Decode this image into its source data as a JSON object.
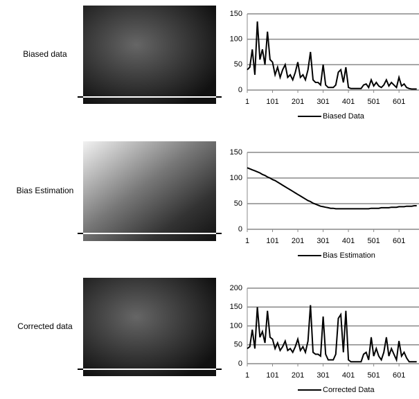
{
  "row_labels": [
    "Biased data",
    "Bias Estimation",
    "Corrected data"
  ],
  "chart_data": [
    {
      "type": "line",
      "x": [
        1,
        11,
        21,
        31,
        41,
        51,
        61,
        71,
        81,
        91,
        101,
        111,
        121,
        131,
        141,
        151,
        161,
        171,
        181,
        191,
        201,
        211,
        221,
        231,
        241,
        251,
        261,
        271,
        281,
        291,
        301,
        311,
        321,
        331,
        341,
        351,
        361,
        371,
        381,
        391,
        401,
        411,
        421,
        431,
        441,
        451,
        461,
        471,
        481,
        491,
        501,
        511,
        521,
        531,
        541,
        551,
        561,
        571,
        581,
        591,
        601,
        611,
        621,
        631,
        641,
        651,
        661,
        671
      ],
      "series": [
        {
          "name": "Biased Data",
          "color": "#000000",
          "values": [
            40,
            45,
            80,
            30,
            135,
            60,
            80,
            50,
            115,
            60,
            55,
            30,
            45,
            25,
            40,
            50,
            25,
            30,
            20,
            35,
            55,
            25,
            30,
            20,
            40,
            75,
            20,
            15,
            15,
            10,
            50,
            10,
            5,
            5,
            5,
            10,
            35,
            40,
            15,
            45,
            5,
            3,
            3,
            3,
            3,
            3,
            10,
            12,
            5,
            20,
            8,
            15,
            8,
            5,
            10,
            20,
            8,
            15,
            10,
            5,
            25,
            8,
            12,
            5,
            3,
            2,
            2,
            2
          ]
        }
      ],
      "xlim": [
        1,
        680
      ],
      "xticks": [
        1,
        101,
        201,
        301,
        401,
        501,
        601
      ],
      "ylim": [
        0,
        150
      ],
      "yticks": [
        0,
        50,
        100,
        150
      ],
      "grid": true
    },
    {
      "type": "line",
      "x": [
        1,
        11,
        21,
        31,
        41,
        51,
        61,
        71,
        81,
        91,
        101,
        111,
        121,
        131,
        141,
        151,
        161,
        171,
        181,
        191,
        201,
        211,
        221,
        231,
        241,
        251,
        261,
        271,
        281,
        291,
        301,
        311,
        321,
        331,
        341,
        351,
        361,
        371,
        381,
        391,
        401,
        411,
        421,
        431,
        441,
        451,
        461,
        471,
        481,
        491,
        501,
        511,
        521,
        531,
        541,
        551,
        561,
        571,
        581,
        591,
        601,
        611,
        621,
        631,
        641,
        651,
        661,
        671
      ],
      "series": [
        {
          "name": "Bias Estimation",
          "color": "#000000",
          "values": [
            120,
            118,
            116,
            114,
            112,
            110,
            107,
            105,
            102,
            100,
            97,
            95,
            92,
            89,
            86,
            83,
            80,
            77,
            74,
            71,
            68,
            65,
            62,
            59,
            56,
            54,
            51,
            49,
            47,
            45,
            44,
            43,
            42,
            41,
            41,
            40,
            40,
            40,
            40,
            40,
            40,
            40,
            40,
            40,
            40,
            40,
            40,
            40,
            40,
            41,
            41,
            41,
            41,
            42,
            42,
            42,
            42,
            43,
            43,
            43,
            44,
            44,
            44,
            45,
            45,
            45,
            46,
            46
          ]
        }
      ],
      "xlim": [
        1,
        680
      ],
      "xticks": [
        1,
        101,
        201,
        301,
        401,
        501,
        601
      ],
      "ylim": [
        0,
        150
      ],
      "yticks": [
        0,
        50,
        100,
        150
      ],
      "grid": true
    },
    {
      "type": "line",
      "x": [
        1,
        11,
        21,
        31,
        41,
        51,
        61,
        71,
        81,
        91,
        101,
        111,
        121,
        131,
        141,
        151,
        161,
        171,
        181,
        191,
        201,
        211,
        221,
        231,
        241,
        251,
        261,
        271,
        281,
        291,
        301,
        311,
        321,
        331,
        341,
        351,
        361,
        371,
        381,
        391,
        401,
        411,
        421,
        431,
        441,
        451,
        461,
        471,
        481,
        491,
        501,
        511,
        521,
        531,
        541,
        551,
        561,
        571,
        581,
        591,
        601,
        611,
        621,
        631,
        641,
        651,
        661,
        671
      ],
      "series": [
        {
          "name": "Corrected Data",
          "color": "#000000",
          "values": [
            40,
            45,
            90,
            40,
            150,
            70,
            85,
            55,
            140,
            70,
            65,
            40,
            55,
            35,
            45,
            60,
            35,
            40,
            30,
            45,
            65,
            35,
            45,
            30,
            60,
            155,
            30,
            25,
            25,
            20,
            125,
            25,
            10,
            10,
            10,
            25,
            120,
            130,
            30,
            140,
            10,
            5,
            5,
            5,
            5,
            5,
            25,
            30,
            10,
            70,
            20,
            40,
            20,
            10,
            30,
            70,
            20,
            40,
            25,
            10,
            60,
            20,
            30,
            15,
            5,
            5,
            5,
            5
          ]
        }
      ],
      "xlim": [
        1,
        680
      ],
      "xticks": [
        1,
        101,
        201,
        301,
        401,
        501,
        601
      ],
      "ylim": [
        0,
        200
      ],
      "yticks": [
        0,
        50,
        100,
        150,
        200
      ],
      "grid": true
    }
  ]
}
